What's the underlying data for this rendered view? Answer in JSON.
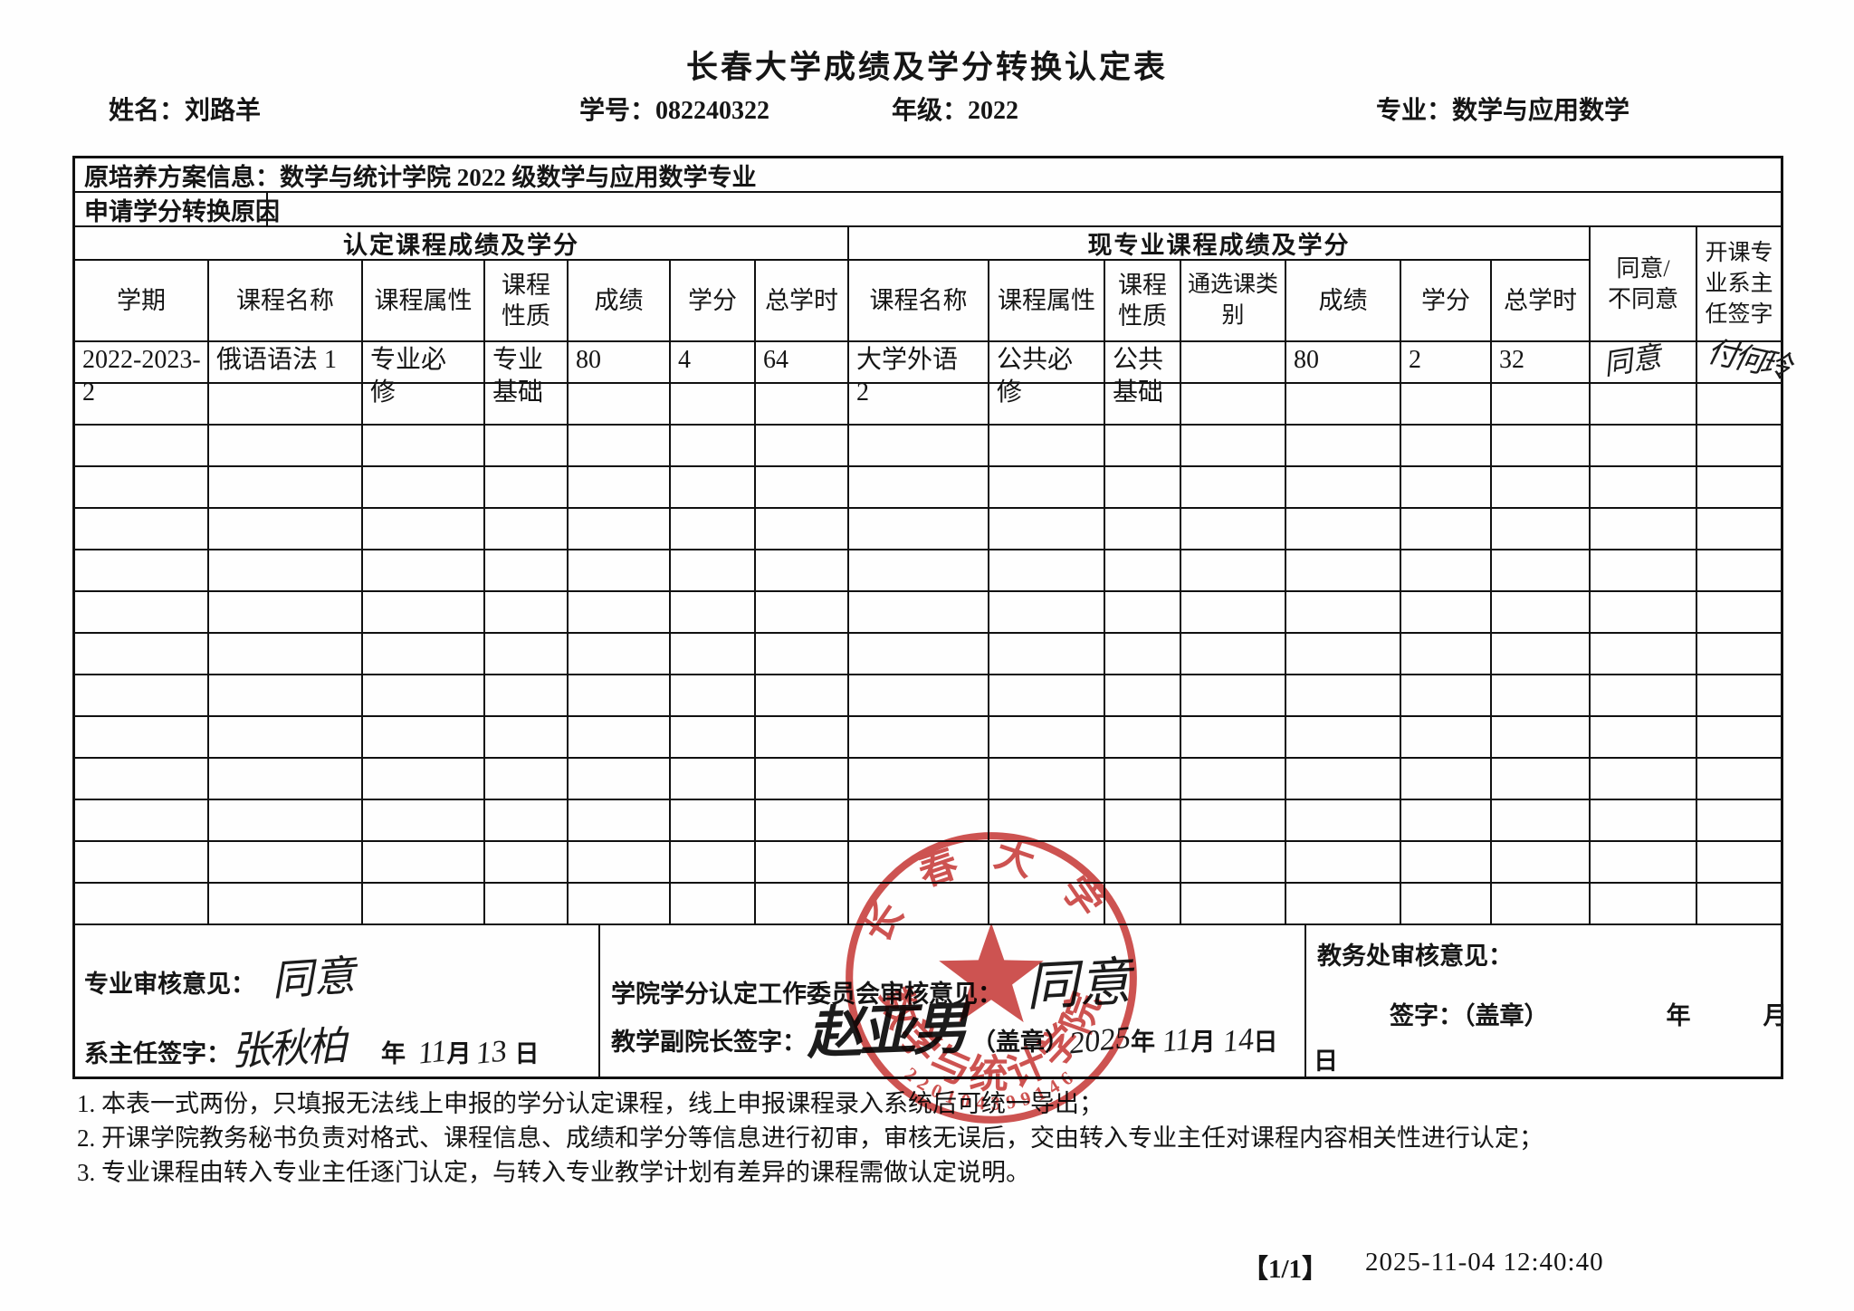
{
  "page": {
    "title": "长春大学成绩及学分转换认定表",
    "footer_page": "【1/1】",
    "footer_timestamp": "2025-11-04 12:40:40"
  },
  "student": {
    "name_label": "姓名：",
    "name": "刘路羊",
    "id_label": "学号：",
    "id": "082240322",
    "grade_label": "年级：",
    "grade": "2022",
    "major_label": "专业：",
    "major": "数学与应用数学"
  },
  "form": {
    "plan_info": "原培养方案信息：数学与统计学院 2022 级数学与应用数学专业",
    "reason_label": "申请学分转换原因",
    "group_left": "认定课程成绩及学分",
    "group_right": "现专业课程成绩及学分",
    "agree_header": "同意/不同意",
    "sign_header": "开课专业系主任签字",
    "columns_left": [
      "学期",
      "课程名称",
      "课程属性",
      "课程性质",
      "成绩",
      "学分",
      "总学时"
    ],
    "columns_right": [
      "课程名称",
      "课程属性",
      "课程性质",
      "通选课类别",
      "成绩",
      "学分",
      "总学时"
    ],
    "rows": [
      {
        "term": "2022-2023-2",
        "course": "俄语语法 1",
        "attr": "专业必修",
        "nature": "专业基础",
        "score": "80",
        "credit": "4",
        "hours": "64",
        "course2": "大学外语 2",
        "attr2": "公共必修",
        "nature2": "公共基础",
        "elective": "",
        "score2": "80",
        "credit2": "2",
        "hours2": "32",
        "agree": "同意",
        "sign": "付何玲"
      }
    ],
    "empty_rows": 13
  },
  "review": {
    "major_label": "专业审核意见：",
    "major_hand": "同意",
    "dept_sign_label": "系主任签字：",
    "dept_sign_hand": "张秋柏",
    "dept_year_label": "年",
    "dept_month_hand": "11",
    "dept_month_label": "月",
    "dept_day_hand": "13",
    "dept_day_label": "日",
    "committee_label": "学院学分认定工作委员会审核意见：",
    "committee_hand": "同意",
    "vice_dean_label": "教学副院长签字：",
    "vice_dean_hand": "赵亚男",
    "seal_note": "（盖章）",
    "vd_year_hand": "2025",
    "vd_year_label": "年",
    "vd_month_hand": "11",
    "vd_month_label": "月",
    "vd_day_hand": "14",
    "vd_day_label": "日",
    "office_label": "教务处审核意见：",
    "office_sign_line": "签字：（盖章）",
    "office_year_label": "年",
    "office_month_label": "月",
    "office_day_label": "日"
  },
  "stamp": {
    "top_text": "长春大学",
    "bottom_text": "数学与统计学院",
    "number": "220104399146",
    "color": "#c9403e"
  },
  "notes": [
    "1. 本表一式两份，只填报无法线上申报的学分认定课程，线上申报课程录入系统后可统一导出；",
    "2. 开课学院教务秘书负责对格式、课程信息、成绩和学分等信息进行初审，审核无误后，交由转入专业主任对课程内容相关性进行认定；",
    "3. 专业课程由转入专业主任逐门认定，与转入专业教学计划有差异的课程需做认定说明。"
  ]
}
